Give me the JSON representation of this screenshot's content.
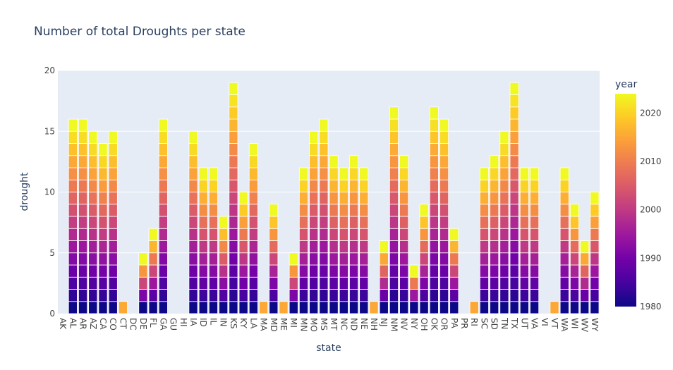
{
  "chart_data": {
    "type": "bar",
    "stacked": true,
    "title": "Number of total Droughts per state",
    "xlabel": "state",
    "ylabel": "drought",
    "ylim": [
      0,
      20
    ],
    "yticks": [
      0,
      5,
      10,
      15,
      20
    ],
    "grid": true,
    "categories": [
      "AK",
      "AL",
      "AR",
      "AZ",
      "CA",
      "CO",
      "CT",
      "DC",
      "DE",
      "FL",
      "GA",
      "GU",
      "HI",
      "IA",
      "ID",
      "IL",
      "IN",
      "KS",
      "KY",
      "LA",
      "MA",
      "MD",
      "ME",
      "MI",
      "MN",
      "MO",
      "MS",
      "MT",
      "NC",
      "ND",
      "NE",
      "NH",
      "NJ",
      "NM",
      "NV",
      "NY",
      "OH",
      "OK",
      "OR",
      "PA",
      "PR",
      "RI",
      "SC",
      "SD",
      "TN",
      "TX",
      "UT",
      "VA",
      "VI",
      "VT",
      "WA",
      "WI",
      "WV",
      "WY"
    ],
    "values": [
      0,
      16,
      16,
      15,
      14,
      15,
      1,
      0,
      5,
      7,
      16,
      0,
      0,
      15,
      12,
      12,
      8,
      19,
      10,
      14,
      1,
      9,
      1,
      5,
      12,
      15,
      16,
      13,
      12,
      13,
      12,
      1,
      6,
      17,
      13,
      4,
      9,
      17,
      16,
      7,
      0,
      1,
      12,
      13,
      15,
      19,
      12,
      12,
      0,
      1,
      12,
      9,
      6,
      10
    ],
    "color_scale": {
      "title": "year",
      "min": 1980,
      "max": 2024,
      "ticks": [
        1980,
        1990,
        2000,
        2010,
        2020
      ],
      "colors": [
        "#0d0887",
        "#46039f",
        "#7201a8",
        "#9c179e",
        "#bd3786",
        "#d8576b",
        "#ed7953",
        "#fb9f3a",
        "#fdca26",
        "#f0f921"
      ]
    },
    "colors": {
      "plot_bg": "#e5ecf6",
      "grid": "#ffffff",
      "segment_border": "#ffffff"
    }
  }
}
